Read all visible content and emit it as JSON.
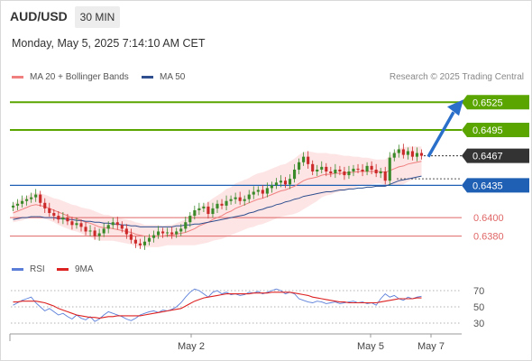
{
  "header": {
    "pair": "AUD/USD",
    "timeframe": "30 MIN",
    "datetime": "Monday, May 5, 2025 7:14:10 AM CET"
  },
  "legend": {
    "ma20_label": "MA 20 + Bollinger Bands",
    "ma50_label": "MA 50",
    "credit": "Research © 2025 Trading Central",
    "rsi_label": "RSI",
    "ma9_label": "9MA"
  },
  "colors": {
    "ma20": "#f08080",
    "bollinger_fill": "#fde0e0",
    "ma50": "#2f4f8f",
    "resistance": "#5aa500",
    "support_blue": "#1f5fb4",
    "support_red": "#e06666",
    "candle_up": "#3a8a2a",
    "candle_down": "#cc2a2a",
    "arrow": "#2a6fc9",
    "current_price_box": "#333333",
    "rsi": "#5b7fd9",
    "rsi_ma": "#dd2222"
  },
  "chart_data": {
    "type": "candlestick",
    "title": "AUD/USD",
    "timeframe": "30 MIN",
    "y_range": [
      0.6362,
      0.6538
    ],
    "x_ticks": [
      "May 2",
      "May 5",
      "May 7"
    ],
    "current_price": 0.6467,
    "levels": [
      {
        "value": 0.6525,
        "label": "0.6525",
        "kind": "resistance",
        "style": "boxed-green"
      },
      {
        "value": 0.6495,
        "label": "0.6495",
        "kind": "resistance",
        "style": "boxed-green"
      },
      {
        "value": 0.6435,
        "label": "0.6435",
        "kind": "pivot",
        "style": "boxed-blue"
      },
      {
        "value": 0.64,
        "label": "0.6400",
        "kind": "support",
        "style": "text-red"
      },
      {
        "value": 0.638,
        "label": "0.6380",
        "kind": "support",
        "style": "text-red"
      }
    ],
    "target_arrow": {
      "from": 0.6467,
      "to": 0.6525
    },
    "candles_close": [
      0.6413,
      0.6415,
      0.6418,
      0.642,
      0.6422,
      0.6425,
      0.6416,
      0.641,
      0.6405,
      0.6402,
      0.6398,
      0.64,
      0.6396,
      0.6392,
      0.6394,
      0.639,
      0.6385,
      0.6386,
      0.638,
      0.6383,
      0.6388,
      0.6392,
      0.6395,
      0.6392,
      0.6388,
      0.6382,
      0.6376,
      0.6372,
      0.637,
      0.6374,
      0.6378,
      0.6381,
      0.6385,
      0.6383,
      0.6384,
      0.6382,
      0.6385,
      0.6388,
      0.6395,
      0.6402,
      0.6408,
      0.641,
      0.6412,
      0.6404,
      0.641,
      0.6415,
      0.6413,
      0.6418,
      0.642,
      0.6422,
      0.6418,
      0.642,
      0.6425,
      0.6428,
      0.643,
      0.6426,
      0.6432,
      0.6435,
      0.6438,
      0.644,
      0.6436,
      0.6442,
      0.6452,
      0.646,
      0.6466,
      0.6458,
      0.645,
      0.6452,
      0.6455,
      0.645,
      0.6448,
      0.6452,
      0.645,
      0.6446,
      0.645,
      0.6453,
      0.6452,
      0.645,
      0.6456,
      0.6452,
      0.6448,
      0.645,
      0.644,
      0.6465,
      0.647,
      0.6474,
      0.6468,
      0.6472,
      0.6466,
      0.647,
      0.6467
    ],
    "ma20": [
      0.6405,
      0.6407,
      0.6409,
      0.6411,
      0.6413,
      0.6414,
      0.6413,
      0.6412,
      0.641,
      0.6408,
      0.6406,
      0.6404,
      0.6402,
      0.64,
      0.6399,
      0.6397,
      0.6395,
      0.6394,
      0.6392,
      0.639,
      0.6389,
      0.6389,
      0.6388,
      0.6387,
      0.6386,
      0.6385,
      0.6384,
      0.6382,
      0.6381,
      0.638,
      0.638,
      0.638,
      0.638,
      0.638,
      0.6381,
      0.6381,
      0.6382,
      0.6383,
      0.6384,
      0.6386,
      0.6388,
      0.6391,
      0.6393,
      0.6395,
      0.6398,
      0.64,
      0.6402,
      0.6405,
      0.6407,
      0.641,
      0.6412,
      0.6414,
      0.6416,
      0.6418,
      0.642,
      0.6421,
      0.6423,
      0.6425,
      0.6427,
      0.6429,
      0.643,
      0.6432,
      0.6434,
      0.6437,
      0.644,
      0.6442,
      0.6443,
      0.6444,
      0.6446,
      0.6447,
      0.6447,
      0.6448,
      0.6448,
      0.6448,
      0.6449,
      0.6449,
      0.645,
      0.645,
      0.645,
      0.645,
      0.645,
      0.645,
      0.6449,
      0.6451,
      0.6453,
      0.6455,
      0.6456,
      0.6458,
      0.6459,
      0.646,
      0.6461
    ],
    "bb_half_width": [
      0.001,
      0.0011,
      0.0012,
      0.0012,
      0.0013,
      0.0013,
      0.0013,
      0.0013,
      0.0013,
      0.0013,
      0.0014,
      0.0014,
      0.0014,
      0.0014,
      0.0014,
      0.0014,
      0.0015,
      0.0015,
      0.0015,
      0.0015,
      0.0014,
      0.0014,
      0.0013,
      0.0013,
      0.0013,
      0.0013,
      0.0013,
      0.0013,
      0.0013,
      0.0012,
      0.0012,
      0.0012,
      0.0012,
      0.0011,
      0.0011,
      0.0011,
      0.0012,
      0.0013,
      0.0014,
      0.0016,
      0.0018,
      0.002,
      0.0021,
      0.0022,
      0.0023,
      0.0024,
      0.0025,
      0.0026,
      0.0026,
      0.0027,
      0.0027,
      0.0027,
      0.0027,
      0.0028,
      0.0028,
      0.0028,
      0.0028,
      0.0028,
      0.0028,
      0.0028,
      0.0028,
      0.0029,
      0.003,
      0.0031,
      0.0031,
      0.003,
      0.0028,
      0.0026,
      0.0024,
      0.0023,
      0.0022,
      0.0021,
      0.002,
      0.0019,
      0.0018,
      0.0017,
      0.0016,
      0.0015,
      0.0015,
      0.0014,
      0.0013,
      0.0013,
      0.0014,
      0.0016,
      0.0018,
      0.002,
      0.002,
      0.0019,
      0.0018,
      0.0017,
      0.0016
    ],
    "ma50": [
      0.6398,
      0.6399,
      0.64,
      0.64,
      0.6401,
      0.6401,
      0.6401,
      0.64,
      0.64,
      0.64,
      0.6399,
      0.6399,
      0.6398,
      0.6398,
      0.6397,
      0.6397,
      0.6396,
      0.6396,
      0.6395,
      0.6395,
      0.6394,
      0.6394,
      0.6393,
      0.6393,
      0.6392,
      0.6392,
      0.6391,
      0.6391,
      0.639,
      0.639,
      0.639,
      0.639,
      0.639,
      0.639,
      0.639,
      0.639,
      0.6391,
      0.6391,
      0.6392,
      0.6392,
      0.6393,
      0.6393,
      0.6394,
      0.6395,
      0.6396,
      0.6397,
      0.6398,
      0.6399,
      0.64,
      0.6401,
      0.6402,
      0.6403,
      0.6405,
      0.6406,
      0.6408,
      0.6409,
      0.6411,
      0.6412,
      0.6414,
      0.6415,
      0.6417,
      0.6418,
      0.642,
      0.6421,
      0.6423,
      0.6424,
      0.6425,
      0.6426,
      0.6427,
      0.6428,
      0.6428,
      0.6429,
      0.643,
      0.643,
      0.6431,
      0.6431,
      0.6432,
      0.6432,
      0.6433,
      0.6433,
      0.6434,
      0.6434,
      0.6434,
      0.6436,
      0.6438,
      0.644,
      0.6441,
      0.6442,
      0.6443,
      0.6444,
      0.6445
    ],
    "rsi": {
      "y_range": [
        20,
        80
      ],
      "ticks": [
        70,
        50,
        30
      ],
      "values": [
        52,
        55,
        58,
        60,
        62,
        55,
        50,
        45,
        48,
        44,
        40,
        42,
        38,
        35,
        40,
        36,
        34,
        38,
        32,
        35,
        40,
        44,
        42,
        40,
        38,
        35,
        33,
        36,
        40,
        42,
        44,
        45,
        43,
        46,
        45,
        47,
        50,
        55,
        62,
        68,
        72,
        70,
        66,
        62,
        68,
        70,
        66,
        68,
        65,
        66,
        64,
        65,
        68,
        67,
        69,
        66,
        68,
        70,
        72,
        70,
        66,
        68,
        66,
        60,
        58,
        56,
        55,
        57,
        56,
        54,
        55,
        56,
        54,
        55,
        56,
        57,
        55,
        56,
        54,
        55,
        52,
        60,
        66,
        62,
        64,
        60,
        58,
        62,
        60,
        62,
        63
      ],
      "ma9": [
        56,
        56,
        57,
        57,
        57,
        57,
        56,
        55,
        53,
        51,
        48,
        46,
        44,
        42,
        40,
        39,
        38,
        37,
        37,
        36,
        37,
        38,
        38,
        39,
        39,
        39,
        39,
        39,
        39,
        40,
        41,
        42,
        43,
        44,
        45,
        46,
        47,
        48,
        51,
        54,
        57,
        59,
        61,
        62,
        63,
        64,
        65,
        66,
        66,
        66,
        66,
        66,
        66,
        67,
        67,
        67,
        67,
        68,
        68,
        68,
        68,
        68,
        67,
        66,
        65,
        64,
        62,
        61,
        60,
        59,
        58,
        57,
        56,
        56,
        55,
        55,
        55,
        55,
        55,
        55,
        55,
        56,
        57,
        58,
        59,
        60,
        60,
        60,
        60,
        61,
        61
      ]
    }
  }
}
